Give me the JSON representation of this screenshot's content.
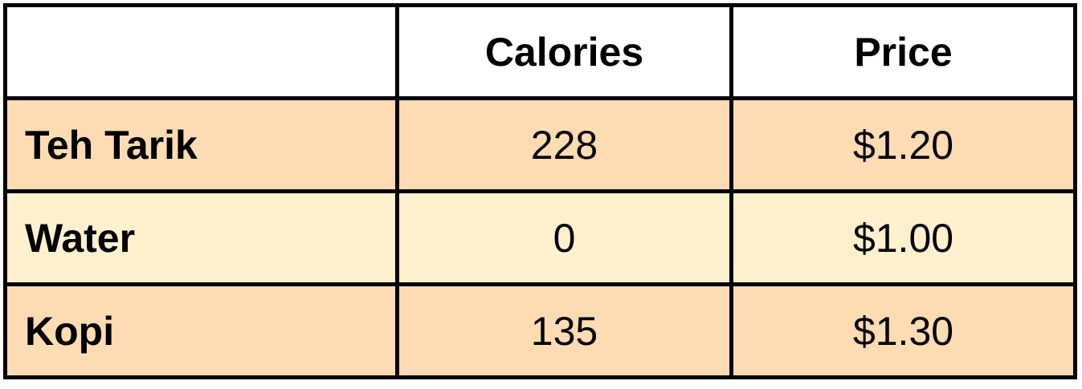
{
  "table": {
    "columns": [
      "",
      "Calories",
      "Price"
    ],
    "rows": [
      {
        "name": "Teh Tarik",
        "calories": "228",
        "price": "$1.20",
        "bg": "#FDDBB3"
      },
      {
        "name": "Water",
        "calories": "0",
        "price": "$1.00",
        "bg": "#FFF0CE"
      },
      {
        "name": "Kopi",
        "calories": "135",
        "price": "$1.30",
        "bg": "#FDDBB3"
      }
    ],
    "colors": {
      "header_bg": "#FFFFFF",
      "border": "#000000"
    }
  }
}
